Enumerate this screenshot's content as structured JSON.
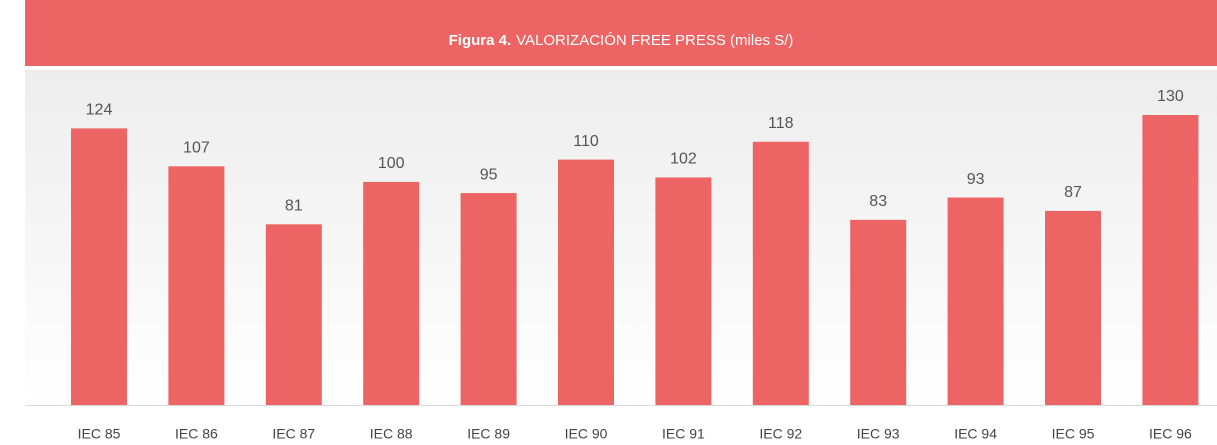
{
  "chart_data": {
    "type": "bar",
    "title_label": "Figura 4.",
    "title": "VALORIZACIÓN FREE PRESS (miles S/)",
    "categories": [
      "IEC 85",
      "IEC 86",
      "IEC 87",
      "IEC 88",
      "IEC 89",
      "IEC 90",
      "IEC 91",
      "IEC 92",
      "IEC 93",
      "IEC 94",
      "IEC 95",
      "IEC 96"
    ],
    "values": [
      124,
      107,
      81,
      100,
      95,
      110,
      102,
      118,
      83,
      93,
      87,
      130
    ],
    "color": "#ec6463"
  }
}
